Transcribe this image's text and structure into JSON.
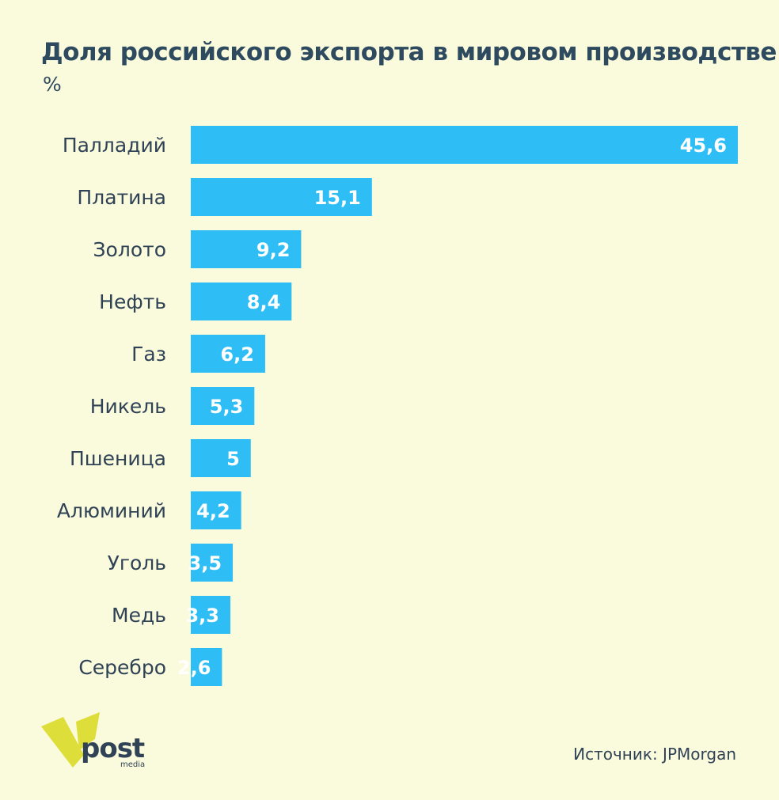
{
  "chart_data": {
    "type": "bar",
    "orientation": "horizontal",
    "title": "Доля российского экспорта в мировом производстве",
    "subtitle": "%",
    "categories": [
      "Палладий",
      "Платина",
      "Золото",
      "Нефть",
      "Газ",
      "Никель",
      "Пшеница",
      "Алюминий",
      "Уголь",
      "Медь",
      "Серебро"
    ],
    "values": [
      45.6,
      15.1,
      9.2,
      8.4,
      6.2,
      5.3,
      5,
      4.2,
      3.5,
      3.3,
      2.6
    ],
    "value_labels": [
      "45,6",
      "15,1",
      "9,2",
      "8,4",
      "6,2",
      "5,3",
      "5",
      "4,2",
      "3,5",
      "3,3",
      "2,6"
    ],
    "xlim": [
      0,
      45.6
    ],
    "grid": false,
    "bar_color": "#2fbdf5"
  },
  "footer": {
    "source": "Источник: JPMorgan"
  },
  "logo": {
    "text": "post",
    "sub": "media",
    "color": "#dede3a"
  }
}
